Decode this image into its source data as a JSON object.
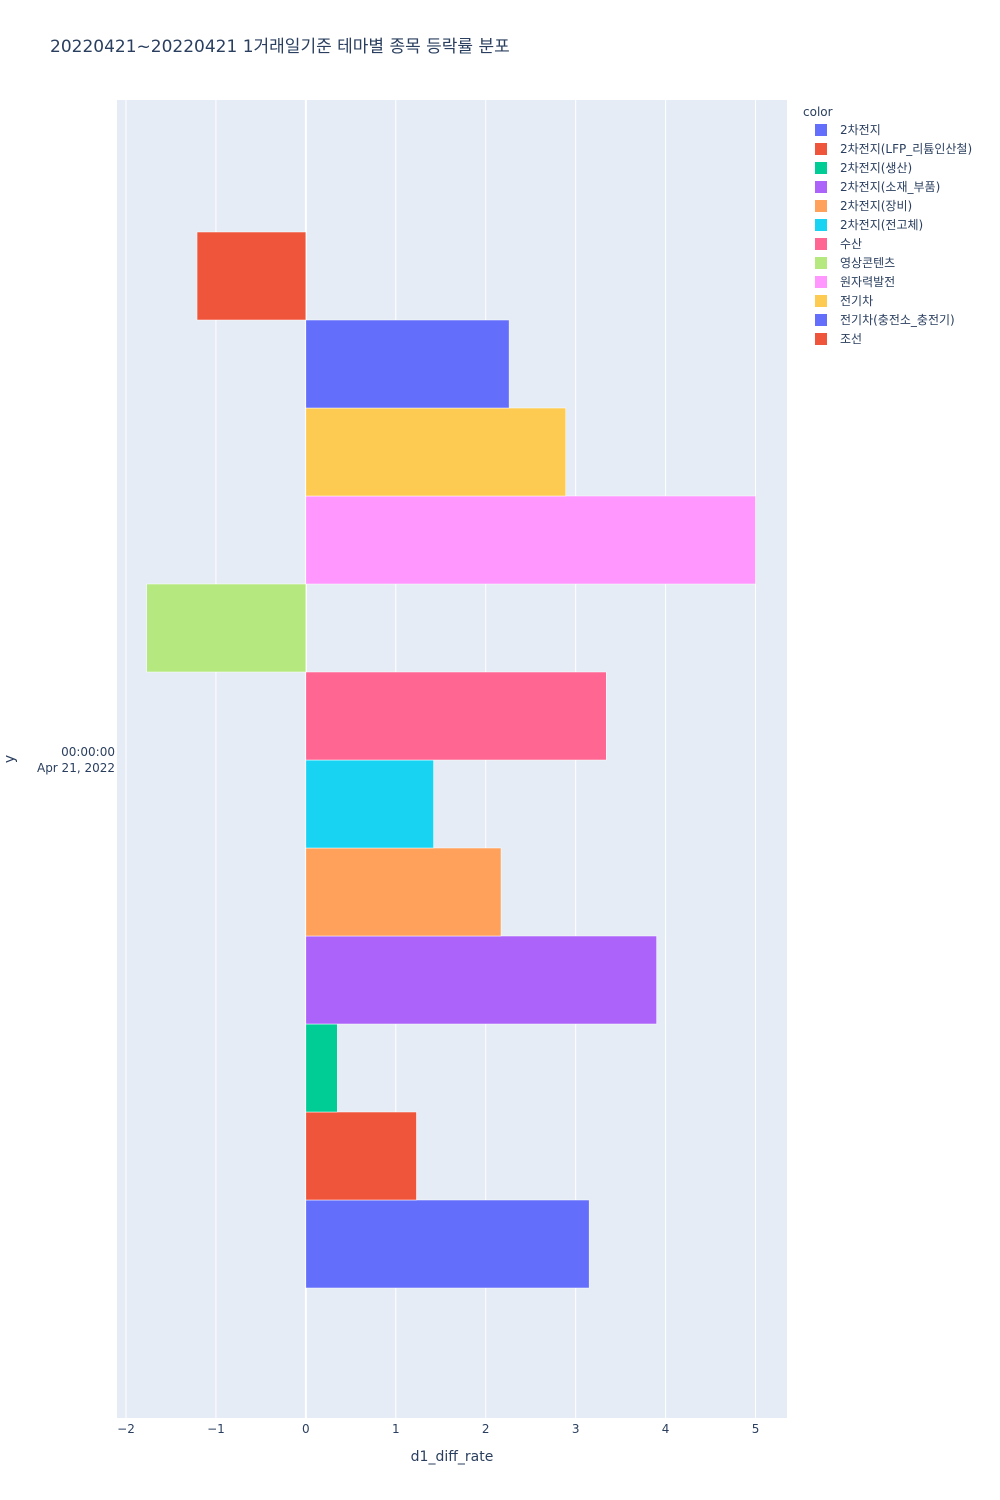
{
  "chart_data": {
    "type": "bar",
    "orientation": "horizontal",
    "title": "20220421~20220421 1거래일기준 테마별 종목 등락률 분포",
    "xlabel": "d1_diff_rate",
    "ylabel": "y",
    "y_category_lines": [
      "00:00:00",
      "Apr 21, 2022"
    ],
    "xlim": [
      -2.1,
      5.35
    ],
    "xticks": [
      -2,
      -1,
      0,
      1,
      2,
      3,
      4,
      5
    ],
    "xtick_labels": [
      "−2",
      "−1",
      "0",
      "1",
      "2",
      "3",
      "4",
      "5"
    ],
    "grid": true,
    "legend_title": "color",
    "legend_position": "top-right",
    "series": [
      {
        "name": "2차전지",
        "color": "#636efa",
        "value": 3.15
      },
      {
        "name": "2차전지(LFP_리튬인산철)",
        "color": "#ef553b",
        "value": 1.23
      },
      {
        "name": "2차전지(생산)",
        "color": "#00cc96",
        "value": 0.35
      },
      {
        "name": "2차전지(소재_부품)",
        "color": "#ab63fa",
        "value": 3.9
      },
      {
        "name": "2차전지(장비)",
        "color": "#ffa15a",
        "value": 2.17
      },
      {
        "name": "2차전지(전고체)",
        "color": "#19d3f3",
        "value": 1.42
      },
      {
        "name": "수산",
        "color": "#ff6692",
        "value": 3.34
      },
      {
        "name": "영상콘텐츠",
        "color": "#b6e880",
        "value": -1.77
      },
      {
        "name": "원자력발전",
        "color": "#ff97ff",
        "value": 5.0
      },
      {
        "name": "전기차",
        "color": "#fecb52",
        "value": 2.89
      },
      {
        "name": "전기차(충전소_충전기)",
        "color": "#636efa",
        "value": 2.26
      },
      {
        "name": "조선",
        "color": "#ef553b",
        "value": -1.21
      }
    ]
  }
}
